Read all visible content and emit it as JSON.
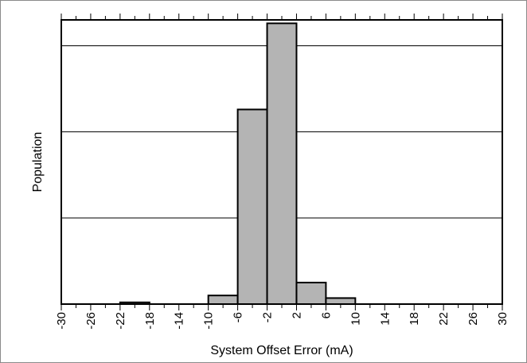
{
  "chart_data": {
    "type": "bar",
    "xlabel": "System Offset Error (mA)",
    "ylabel": "Population",
    "x_ticks": [
      "-30",
      "-26",
      "-22",
      "-18",
      "-14",
      "-10",
      "-6",
      "-2",
      "2",
      "6",
      "10",
      "14",
      "18",
      "22",
      "26",
      "30"
    ],
    "xlim": [
      -30,
      30
    ],
    "x_minor_step": 2,
    "ylim": [
      0,
      330
    ],
    "y_gridlines": [
      100,
      200,
      300
    ],
    "bins": [
      {
        "x0": -22,
        "x1": -18,
        "value": 2
      },
      {
        "x0": -10,
        "x1": -6,
        "value": 10
      },
      {
        "x0": -6,
        "x1": -2,
        "value": 226
      },
      {
        "x0": -2,
        "x1": 2,
        "value": 326
      },
      {
        "x0": 2,
        "x1": 6,
        "value": 25
      },
      {
        "x0": 6,
        "x1": 10,
        "value": 7
      }
    ],
    "bar_color": "#b4b4b4",
    "grid": true,
    "y_tick_labels": false
  }
}
